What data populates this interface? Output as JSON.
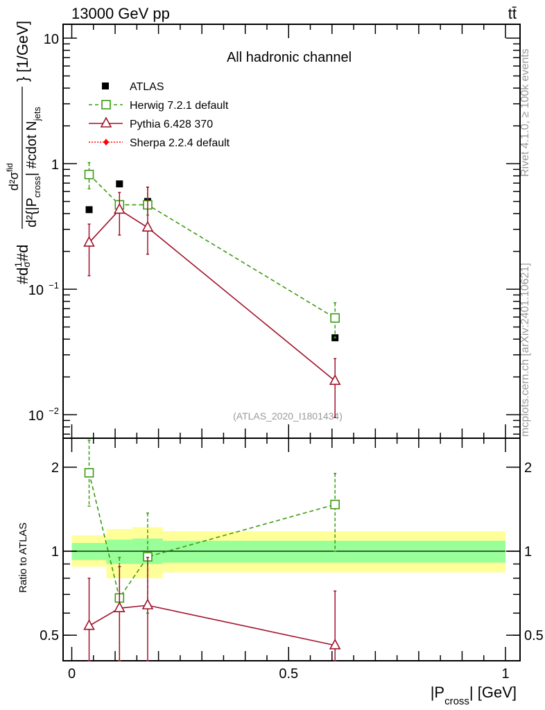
{
  "header": {
    "left": "13000 GeV pp",
    "right": "tt̄"
  },
  "side": {
    "rivet": "Rivet 4.1.0, ≥ 100k events",
    "mcplots": "mcplots.cern.ch [arXiv:2401.10621]"
  },
  "chart_data": [
    {
      "type": "scatter",
      "title": "All hadronic channel",
      "watermark": "(ATLAS_2020_I1801434)",
      "ylabel": "#d¹⁄σ#d d²σᴵᵈ / d²{|P_cross| #cdot N_jets} [1/GeV]",
      "ylabel_parts": {
        "a": "#d",
        "b": "1",
        "c": "σ",
        "d": "#d",
        "e": "d²σ",
        "f": "fid",
        "g": "d²{|P",
        "h": "cross",
        "i": "| #cdot N",
        "j": "jets",
        "k": "} [1/GeV]"
      },
      "yscale": "log",
      "ylim": [
        0.0065,
        12.9
      ],
      "yticks": [
        {
          "v": 10,
          "l": "10"
        },
        {
          "v": 1,
          "l": "1"
        },
        {
          "v": 0.1,
          "l": "10",
          "e": "−1"
        },
        {
          "v": 0.01,
          "l": "10",
          "e": "−2"
        }
      ],
      "xlim": [
        0,
        1
      ],
      "legend_position": "top-left",
      "series": [
        {
          "name": "ATLAS",
          "color": "#000000",
          "marker": "filled-square",
          "x": [
            0.04,
            0.11,
            0.175,
            0.607
          ],
          "y": [
            0.43,
            0.69,
            0.5,
            0.041
          ]
        },
        {
          "name": "Herwig 7.2.1 default",
          "color": "#3a9a10",
          "marker": "open-square",
          "line": "dashed",
          "x": [
            0.04,
            0.11,
            0.175,
            0.607
          ],
          "y": [
            0.82,
            0.47,
            0.47,
            0.059
          ],
          "yerr_lo": [
            0.63,
            0.47,
            0.39,
            0.041
          ],
          "yerr_hi": [
            1.02,
            0.47,
            0.65,
            0.078
          ]
        },
        {
          "name": "Pythia 6.428 370",
          "color": "#a0102a",
          "marker": "open-triangle",
          "line": "solid",
          "x": [
            0.04,
            0.11,
            0.175,
            0.607
          ],
          "y": [
            0.235,
            0.43,
            0.31,
            0.0186
          ],
          "yerr_lo": [
            0.128,
            0.27,
            0.19,
            0.0095
          ],
          "yerr_hi": [
            0.33,
            0.59,
            0.65,
            0.028
          ]
        },
        {
          "name": "Sherpa 2.2.4 default",
          "color": "#ff0000",
          "marker": "filled-diamond",
          "line": "dotted",
          "x": [],
          "y": []
        }
      ]
    },
    {
      "type": "scatter",
      "ylabel": "Ratio to ATLAS",
      "xlabel_parts": {
        "a": "|P",
        "b": "cross",
        "c": "| [GeV]"
      },
      "yscale": "log",
      "ylim": [
        0.405,
        2.54
      ],
      "yticks": [
        {
          "v": 0.5,
          "l": "0.5"
        },
        {
          "v": 1,
          "l": "1"
        },
        {
          "v": 2,
          "l": "2"
        }
      ],
      "xlim": [
        0,
        1
      ],
      "xticks": [
        {
          "v": 0,
          "l": "0"
        },
        {
          "v": 0.5,
          "l": "0.5"
        },
        {
          "v": 1,
          "l": "1"
        }
      ],
      "bins": [
        0,
        0.08,
        0.14,
        0.21,
        1.0
      ],
      "band_yellow": {
        "color": "#ffff99",
        "lo": [
          0.88,
          0.8,
          0.8,
          0.84
        ],
        "hi": [
          1.14,
          1.2,
          1.22,
          1.18
        ]
      },
      "band_green": {
        "color": "#99ff99",
        "lo": [
          0.93,
          0.9,
          0.9,
          0.91
        ],
        "hi": [
          1.07,
          1.1,
          1.11,
          1.09
        ]
      },
      "series": [
        {
          "name": "Herwig 7.2.1 default",
          "color": "#3a9a10",
          "x": [
            0.04,
            0.11,
            0.175,
            0.607
          ],
          "y": [
            1.91,
            0.68,
            0.955,
            1.47
          ],
          "yerr_lo": [
            1.45,
            0.4,
            0.6,
            1.0
          ],
          "yerr_hi": [
            2.5,
            0.95,
            1.37,
            1.9
          ]
        },
        {
          "name": "Pythia 6.428 370",
          "color": "#a0102a",
          "x": [
            0.04,
            0.11,
            0.175,
            0.607
          ],
          "y": [
            0.54,
            0.625,
            0.64,
            0.46
          ],
          "yerr_lo": [
            0.3,
            0.3,
            0.3,
            0.3
          ],
          "yerr_hi": [
            0.8,
            0.88,
            0.95,
            0.72
          ]
        }
      ]
    }
  ]
}
